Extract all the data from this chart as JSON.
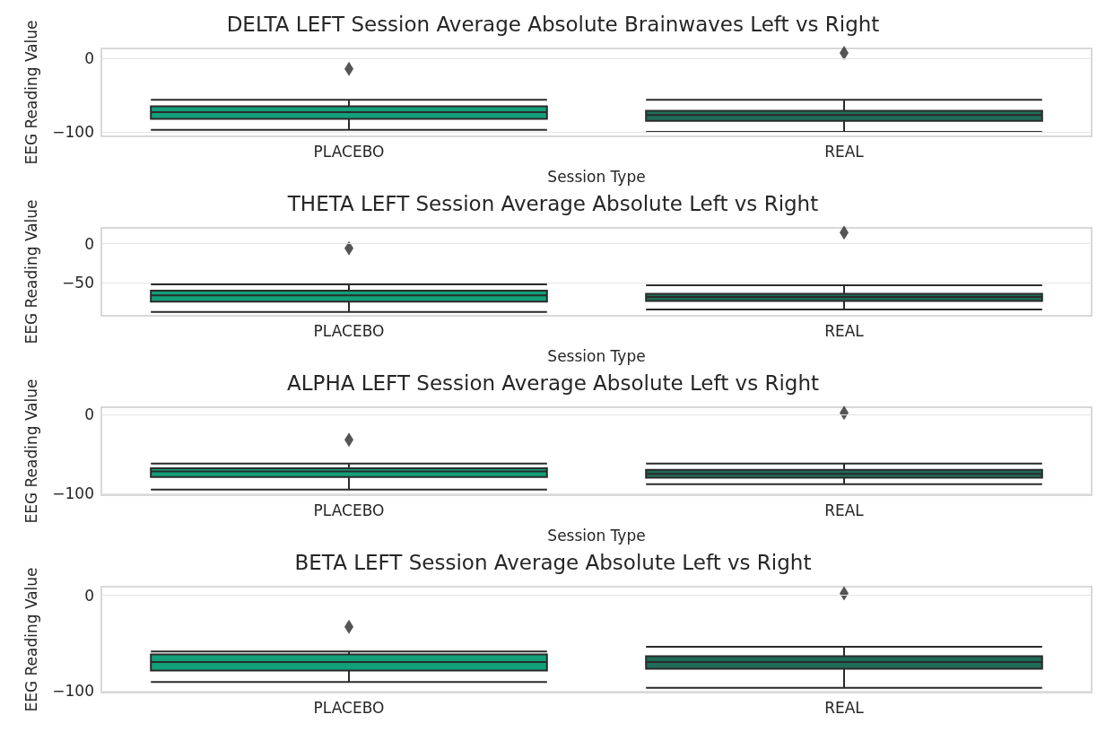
{
  "chart_data": [
    {
      "type": "box",
      "title": "DELTA LEFT Session Average Absolute Brainwaves Left vs Right",
      "xlabel": "Session Type",
      "ylabel": "EEG Reading Value",
      "categories": [
        "PLACEBO",
        "REAL"
      ],
      "colors": [
        "#12a07a",
        "#1f6b57"
      ],
      "ylim": [
        -106,
        14
      ],
      "yticks": [
        -100,
        0
      ],
      "grid": "y",
      "boxes": [
        {
          "low": -97,
          "q1": -82,
          "median": -73,
          "q3": -65,
          "high": -56,
          "outliers": [
            -14
          ]
        },
        {
          "low": -100,
          "q1": -85,
          "median": -77,
          "q3": -71,
          "high": -56,
          "outliers": [
            8
          ]
        }
      ]
    },
    {
      "type": "box",
      "title": "THETA LEFT Session Average Absolute Left vs Right",
      "xlabel": "Session Type",
      "ylabel": "EEG Reading Value",
      "categories": [
        "PLACEBO",
        "REAL"
      ],
      "colors": [
        "#12a07a",
        "#1f6b57"
      ],
      "ylim": [
        -92,
        20
      ],
      "yticks": [
        -50,
        0
      ],
      "grid": "y",
      "boxes": [
        {
          "low": -87,
          "q1": -74,
          "median": -66,
          "q3": -60,
          "high": -52,
          "outliers": [
            -6
          ]
        },
        {
          "low": -84,
          "q1": -73,
          "median": -68,
          "q3": -64,
          "high": -53,
          "outliers": [
            14
          ]
        }
      ]
    },
    {
      "type": "box",
      "title": "ALPHA LEFT Session Average Absolute Left vs Right",
      "xlabel": "Session Type",
      "ylabel": "EEG Reading Value",
      "categories": [
        "PLACEBO",
        "REAL"
      ],
      "colors": [
        "#12a07a",
        "#1f6b57"
      ],
      "ylim": [
        -102,
        9
      ],
      "yticks": [
        -100,
        0
      ],
      "grid": "y",
      "boxes": [
        {
          "low": -95,
          "q1": -79,
          "median": -72,
          "q3": -68,
          "high": -62,
          "outliers": [
            -32
          ]
        },
        {
          "low": -88,
          "q1": -80,
          "median": -75,
          "q3": -70,
          "high": -62,
          "outliers": [
            2
          ]
        }
      ]
    },
    {
      "type": "box",
      "title": "BETA LEFT Session Average Absolute Left vs Right",
      "ylabel": "EEG Reading Value",
      "categories": [
        "PLACEBO",
        "REAL"
      ],
      "colors": [
        "#12a07a",
        "#1f6b57"
      ],
      "ylim": [
        -102,
        9
      ],
      "yticks": [
        -100,
        0
      ],
      "grid": "y",
      "boxes": [
        {
          "low": -91,
          "q1": -79,
          "median": -70,
          "q3": -62,
          "high": -59,
          "outliers": [
            -33
          ]
        },
        {
          "low": -97,
          "q1": -77,
          "median": -70,
          "q3": -64,
          "high": -54,
          "outliers": [
            2
          ]
        }
      ]
    }
  ]
}
